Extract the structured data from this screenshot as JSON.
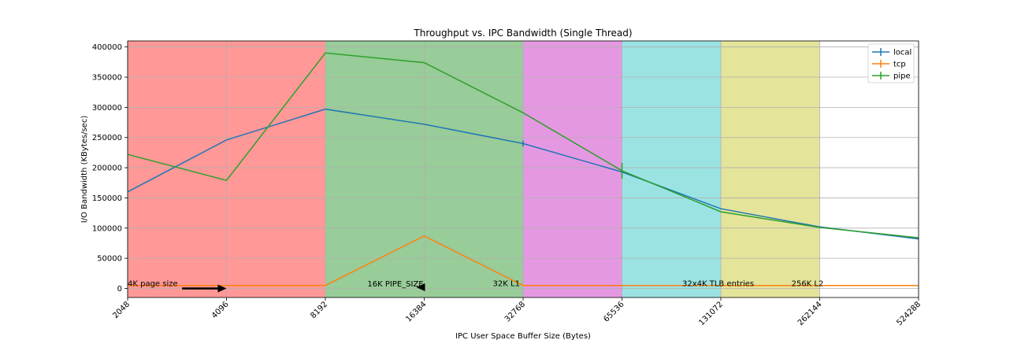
{
  "chart_data": {
    "type": "line",
    "title": "Throughput vs. IPC Bandwidth (Single Thread)",
    "xlabel": "IPC User Space Buffer Size (Bytes)",
    "ylabel": "I/O Bandwidth (KBytes/sec)",
    "x_scale": "log2",
    "x": [
      2048,
      4096,
      8192,
      16384,
      32768,
      65536,
      131072,
      262144,
      524288
    ],
    "x_tick_labels": [
      "2048",
      "4096",
      "8192",
      "16384",
      "32768",
      "65536",
      "131072",
      "262144",
      "524288"
    ],
    "xlim": [
      2048,
      524288
    ],
    "ylim": [
      -15000,
      410000
    ],
    "y_ticks": [
      0,
      50000,
      100000,
      150000,
      200000,
      250000,
      300000,
      350000,
      400000
    ],
    "y_tick_labels": [
      "0",
      "50000",
      "100000",
      "150000",
      "200000",
      "250000",
      "300000",
      "350000",
      "400000"
    ],
    "grid": true,
    "legend_position": "top-right",
    "series": [
      {
        "name": "local",
        "color": "#1f77b4",
        "values": [
          160000,
          246000,
          297000,
          272000,
          240000,
          193000,
          132000,
          102000,
          82000
        ],
        "errors": [
          0,
          0,
          0,
          0,
          5000,
          0,
          0,
          0,
          0
        ]
      },
      {
        "name": "tcp",
        "color": "#ff7f0e",
        "values": [
          5000,
          5000,
          5000,
          87000,
          5000,
          5000,
          5000,
          5000,
          5000
        ],
        "errors": [
          0,
          0,
          0,
          0,
          0,
          0,
          0,
          0,
          0
        ]
      },
      {
        "name": "pipe",
        "color": "#2ca02c",
        "values": [
          222000,
          179000,
          390000,
          374000,
          291000,
          195000,
          127000,
          101000,
          84000
        ],
        "errors": [
          0,
          0,
          0,
          0,
          0,
          13000,
          0,
          0,
          0
        ]
      }
    ],
    "regions": [
      {
        "from": 2048,
        "to": 8192,
        "color": "#ff9896"
      },
      {
        "from": 8192,
        "to": 32768,
        "color": "#98cc98"
      },
      {
        "from": 32768,
        "to": 65536,
        "color": "#e598e2"
      },
      {
        "from": 65536,
        "to": 131072,
        "color": "#9be3e3"
      },
      {
        "from": 131072,
        "to": 262144,
        "color": "#e4e49a"
      }
    ],
    "annotations": [
      {
        "text": "4K page size",
        "x": 2048,
        "y": 4000
      },
      {
        "text": "16K PIPE_SIZE",
        "x": 11000,
        "y": 3000
      },
      {
        "text": "32K L1",
        "x": 26500,
        "y": 4000
      },
      {
        "text": "32x4K TLB entries",
        "x": 100000,
        "y": 4000
      },
      {
        "text": "256K L2",
        "x": 215000,
        "y": 4000
      }
    ],
    "arrows": [
      {
        "x_from": 3000,
        "x_to": 4096,
        "y": 0,
        "direction": "right"
      },
      {
        "x_from": 16384,
        "x_to": 15500,
        "y": 2000,
        "direction": "left"
      }
    ]
  }
}
